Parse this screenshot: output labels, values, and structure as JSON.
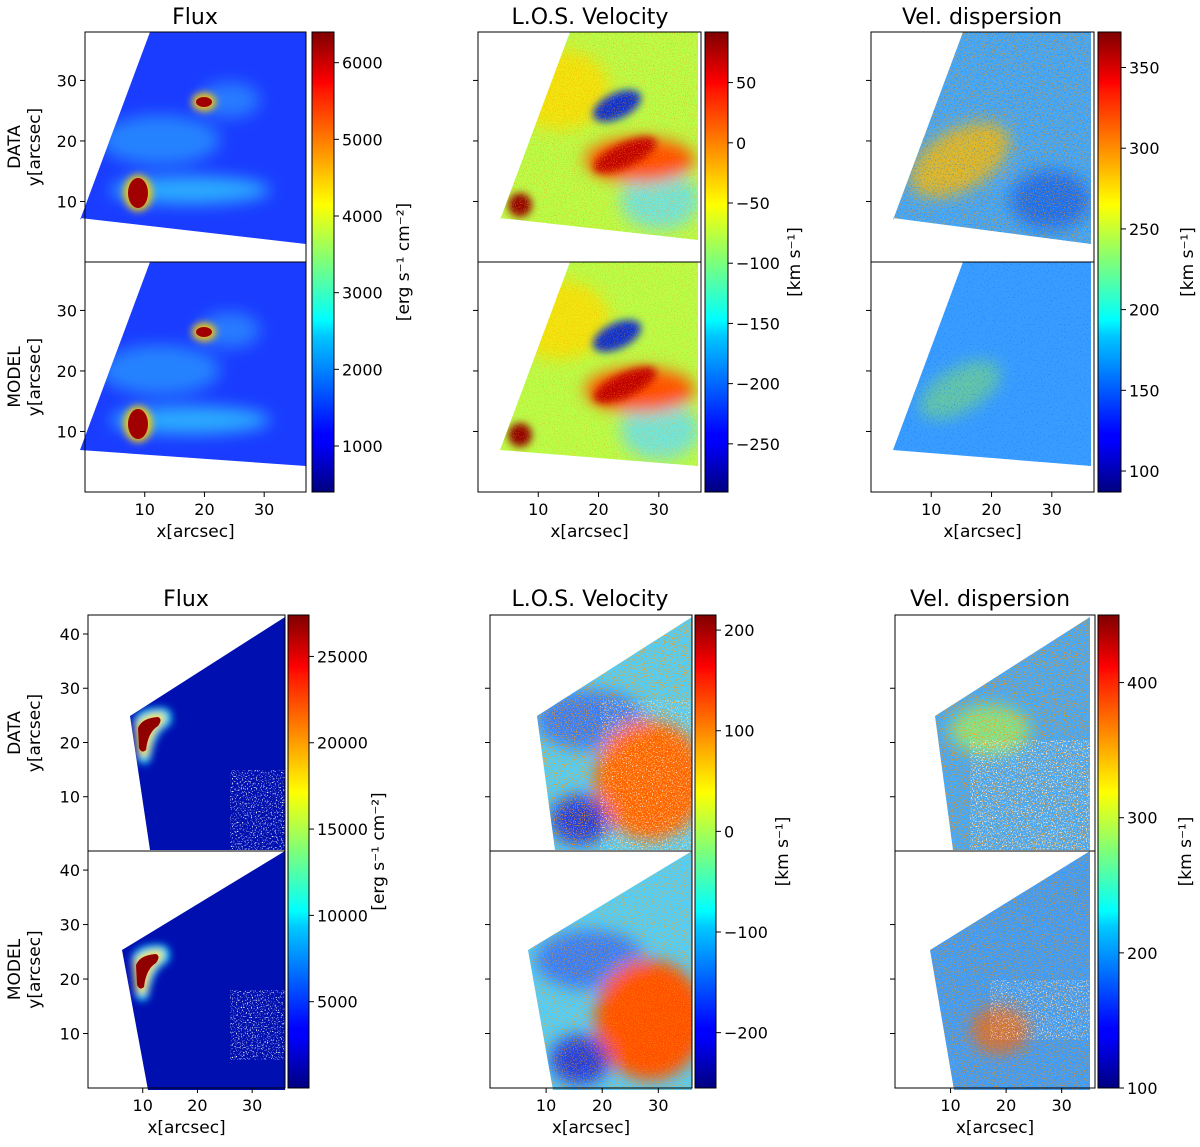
{
  "chart_data": [
    {
      "type": "heatmap",
      "title": "Flux",
      "rows": [
        "DATA",
        "MODEL"
      ],
      "ylabel": "y[arcsec]",
      "xlabel": "x[arcsec]",
      "x_ticks": [
        10,
        20,
        30
      ],
      "y_ticks": [
        10,
        20,
        30
      ],
      "xlim": [
        0,
        37
      ],
      "ylim": [
        0,
        38
      ],
      "colorbar": {
        "label": "[erg s$^{-1}$ cm$^{-2}$]",
        "label_text": "[erg s⁻¹ cm⁻²]",
        "ticks": [
          1000,
          2000,
          3000,
          4000,
          5000,
          6000
        ],
        "range": [
          400,
          6400
        ],
        "colormap": "jet"
      }
    },
    {
      "type": "heatmap",
      "title": "L.O.S. Velocity",
      "rows": [
        "DATA",
        "MODEL"
      ],
      "xlabel": "x[arcsec]",
      "x_ticks": [
        10,
        20,
        30
      ],
      "xlim": [
        0,
        37
      ],
      "ylim": [
        0,
        38
      ],
      "colorbar": {
        "label_text": "[km s⁻¹]",
        "ticks": [
          50,
          0,
          -50,
          -100,
          -150,
          -200,
          -250
        ],
        "range": [
          -290,
          92
        ],
        "colormap": "jet"
      }
    },
    {
      "type": "heatmap",
      "title": "Vel. dispersion",
      "rows": [
        "DATA",
        "MODEL"
      ],
      "xlabel": "x[arcsec]",
      "x_ticks": [
        10,
        20,
        30
      ],
      "xlim": [
        0,
        37
      ],
      "ylim": [
        0,
        38
      ],
      "colorbar": {
        "label_text": "[km s⁻¹]",
        "ticks": [
          100,
          150,
          200,
          250,
          300,
          350
        ],
        "range": [
          87,
          372
        ],
        "colormap": "jet"
      }
    },
    {
      "type": "heatmap",
      "title": "Flux",
      "rows": [
        "DATA",
        "MODEL"
      ],
      "ylabel": "y[arcsec]",
      "xlabel": "x[arcsec]",
      "x_ticks": [
        10,
        20,
        30
      ],
      "y_ticks": [
        10,
        20,
        30,
        40
      ],
      "xlim": [
        0,
        36
      ],
      "ylim": [
        0,
        43.5
      ],
      "colorbar": {
        "label_text": "[erg s⁻¹ cm⁻²]",
        "ticks": [
          5000,
          10000,
          15000,
          20000,
          25000
        ],
        "range": [
          0,
          27400
        ],
        "colormap": "jet"
      }
    },
    {
      "type": "heatmap",
      "title": "L.O.S. Velocity",
      "rows": [
        "DATA",
        "MODEL"
      ],
      "xlabel": "x[arcsec]",
      "x_ticks": [
        10,
        20,
        30
      ],
      "xlim": [
        0,
        36
      ],
      "ylim": [
        0,
        43.5
      ],
      "colorbar": {
        "label_text": "[km s⁻¹]",
        "ticks": [
          200,
          100,
          0,
          -100,
          -200
        ],
        "range": [
          -255,
          215
        ],
        "colormap": "jet"
      }
    },
    {
      "type": "heatmap",
      "title": "Vel. dispersion",
      "rows": [
        "DATA",
        "MODEL"
      ],
      "xlabel": "x[arcsec]",
      "x_ticks": [
        10,
        20,
        30
      ],
      "xlim": [
        0,
        36
      ],
      "ylim": [
        0,
        43.5
      ],
      "colorbar": {
        "label_text": "[km s⁻¹]",
        "ticks": [
          100,
          200,
          300,
          400
        ],
        "range": [
          100,
          450
        ],
        "colormap": "jet"
      }
    }
  ]
}
